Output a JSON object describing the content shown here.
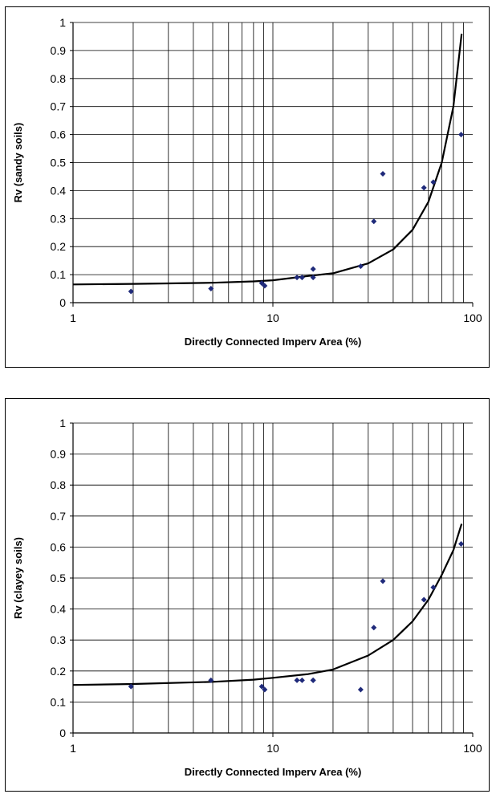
{
  "chart_data": [
    {
      "type": "scatter",
      "xlabel": "Directly Connected Imperv Area (%)",
      "ylabel": "Rv (sandy soils)",
      "xscale": "log",
      "xlim": [
        1,
        100
      ],
      "ylim": [
        0,
        1
      ],
      "x_ticks": [
        "1",
        "10",
        "100"
      ],
      "y_ticks": [
        "0",
        "0.1",
        "0.2",
        "0.3",
        "0.4",
        "0.5",
        "0.6",
        "0.7",
        "0.8",
        "0.9",
        "1"
      ],
      "grid": true,
      "marker_color": "#1f2a7a",
      "series": [
        {
          "kind": "points",
          "x": [
            1.95,
            4.9,
            8.8,
            9.1,
            13.2,
            14.0,
            15.9,
            15.9,
            27.5,
            32.0,
            35.5,
            57.0,
            63.5,
            87.5
          ],
          "y": [
            0.04,
            0.05,
            0.07,
            0.06,
            0.09,
            0.09,
            0.12,
            0.09,
            0.13,
            0.29,
            0.46,
            0.41,
            0.43,
            0.6
          ]
        },
        {
          "kind": "fit-curve",
          "x": [
            1,
            2,
            5,
            8,
            10,
            15,
            20,
            30,
            40,
            50,
            60,
            70,
            80,
            88
          ],
          "y": [
            0.065,
            0.067,
            0.071,
            0.076,
            0.08,
            0.095,
            0.105,
            0.14,
            0.19,
            0.26,
            0.36,
            0.5,
            0.7,
            0.96
          ]
        }
      ]
    },
    {
      "type": "scatter",
      "xlabel": "Directly Connected Imperv Area (%)",
      "ylabel": "Rv (clayey soils)",
      "xscale": "log",
      "xlim": [
        1,
        100
      ],
      "ylim": [
        0,
        1
      ],
      "x_ticks": [
        "1",
        "10",
        "100"
      ],
      "y_ticks": [
        "0",
        "0.1",
        "0.2",
        "0.3",
        "0.4",
        "0.5",
        "0.6",
        "0.7",
        "0.8",
        "0.9",
        "1"
      ],
      "grid": true,
      "marker_color": "#1f2a7a",
      "series": [
        {
          "kind": "points",
          "x": [
            1.95,
            4.9,
            8.8,
            9.1,
            13.2,
            14.0,
            15.9,
            15.9,
            27.5,
            32.0,
            35.5,
            57.0,
            63.5,
            87.5
          ],
          "y": [
            0.15,
            0.17,
            0.15,
            0.14,
            0.17,
            0.17,
            0.17,
            0.17,
            0.14,
            0.34,
            0.49,
            0.43,
            0.47,
            0.61
          ]
        },
        {
          "kind": "fit-curve",
          "x": [
            1,
            2,
            5,
            8,
            10,
            15,
            20,
            30,
            40,
            50,
            60,
            70,
            80,
            88
          ],
          "y": [
            0.155,
            0.158,
            0.165,
            0.172,
            0.178,
            0.19,
            0.205,
            0.25,
            0.3,
            0.36,
            0.43,
            0.51,
            0.59,
            0.675
          ]
        }
      ]
    }
  ]
}
